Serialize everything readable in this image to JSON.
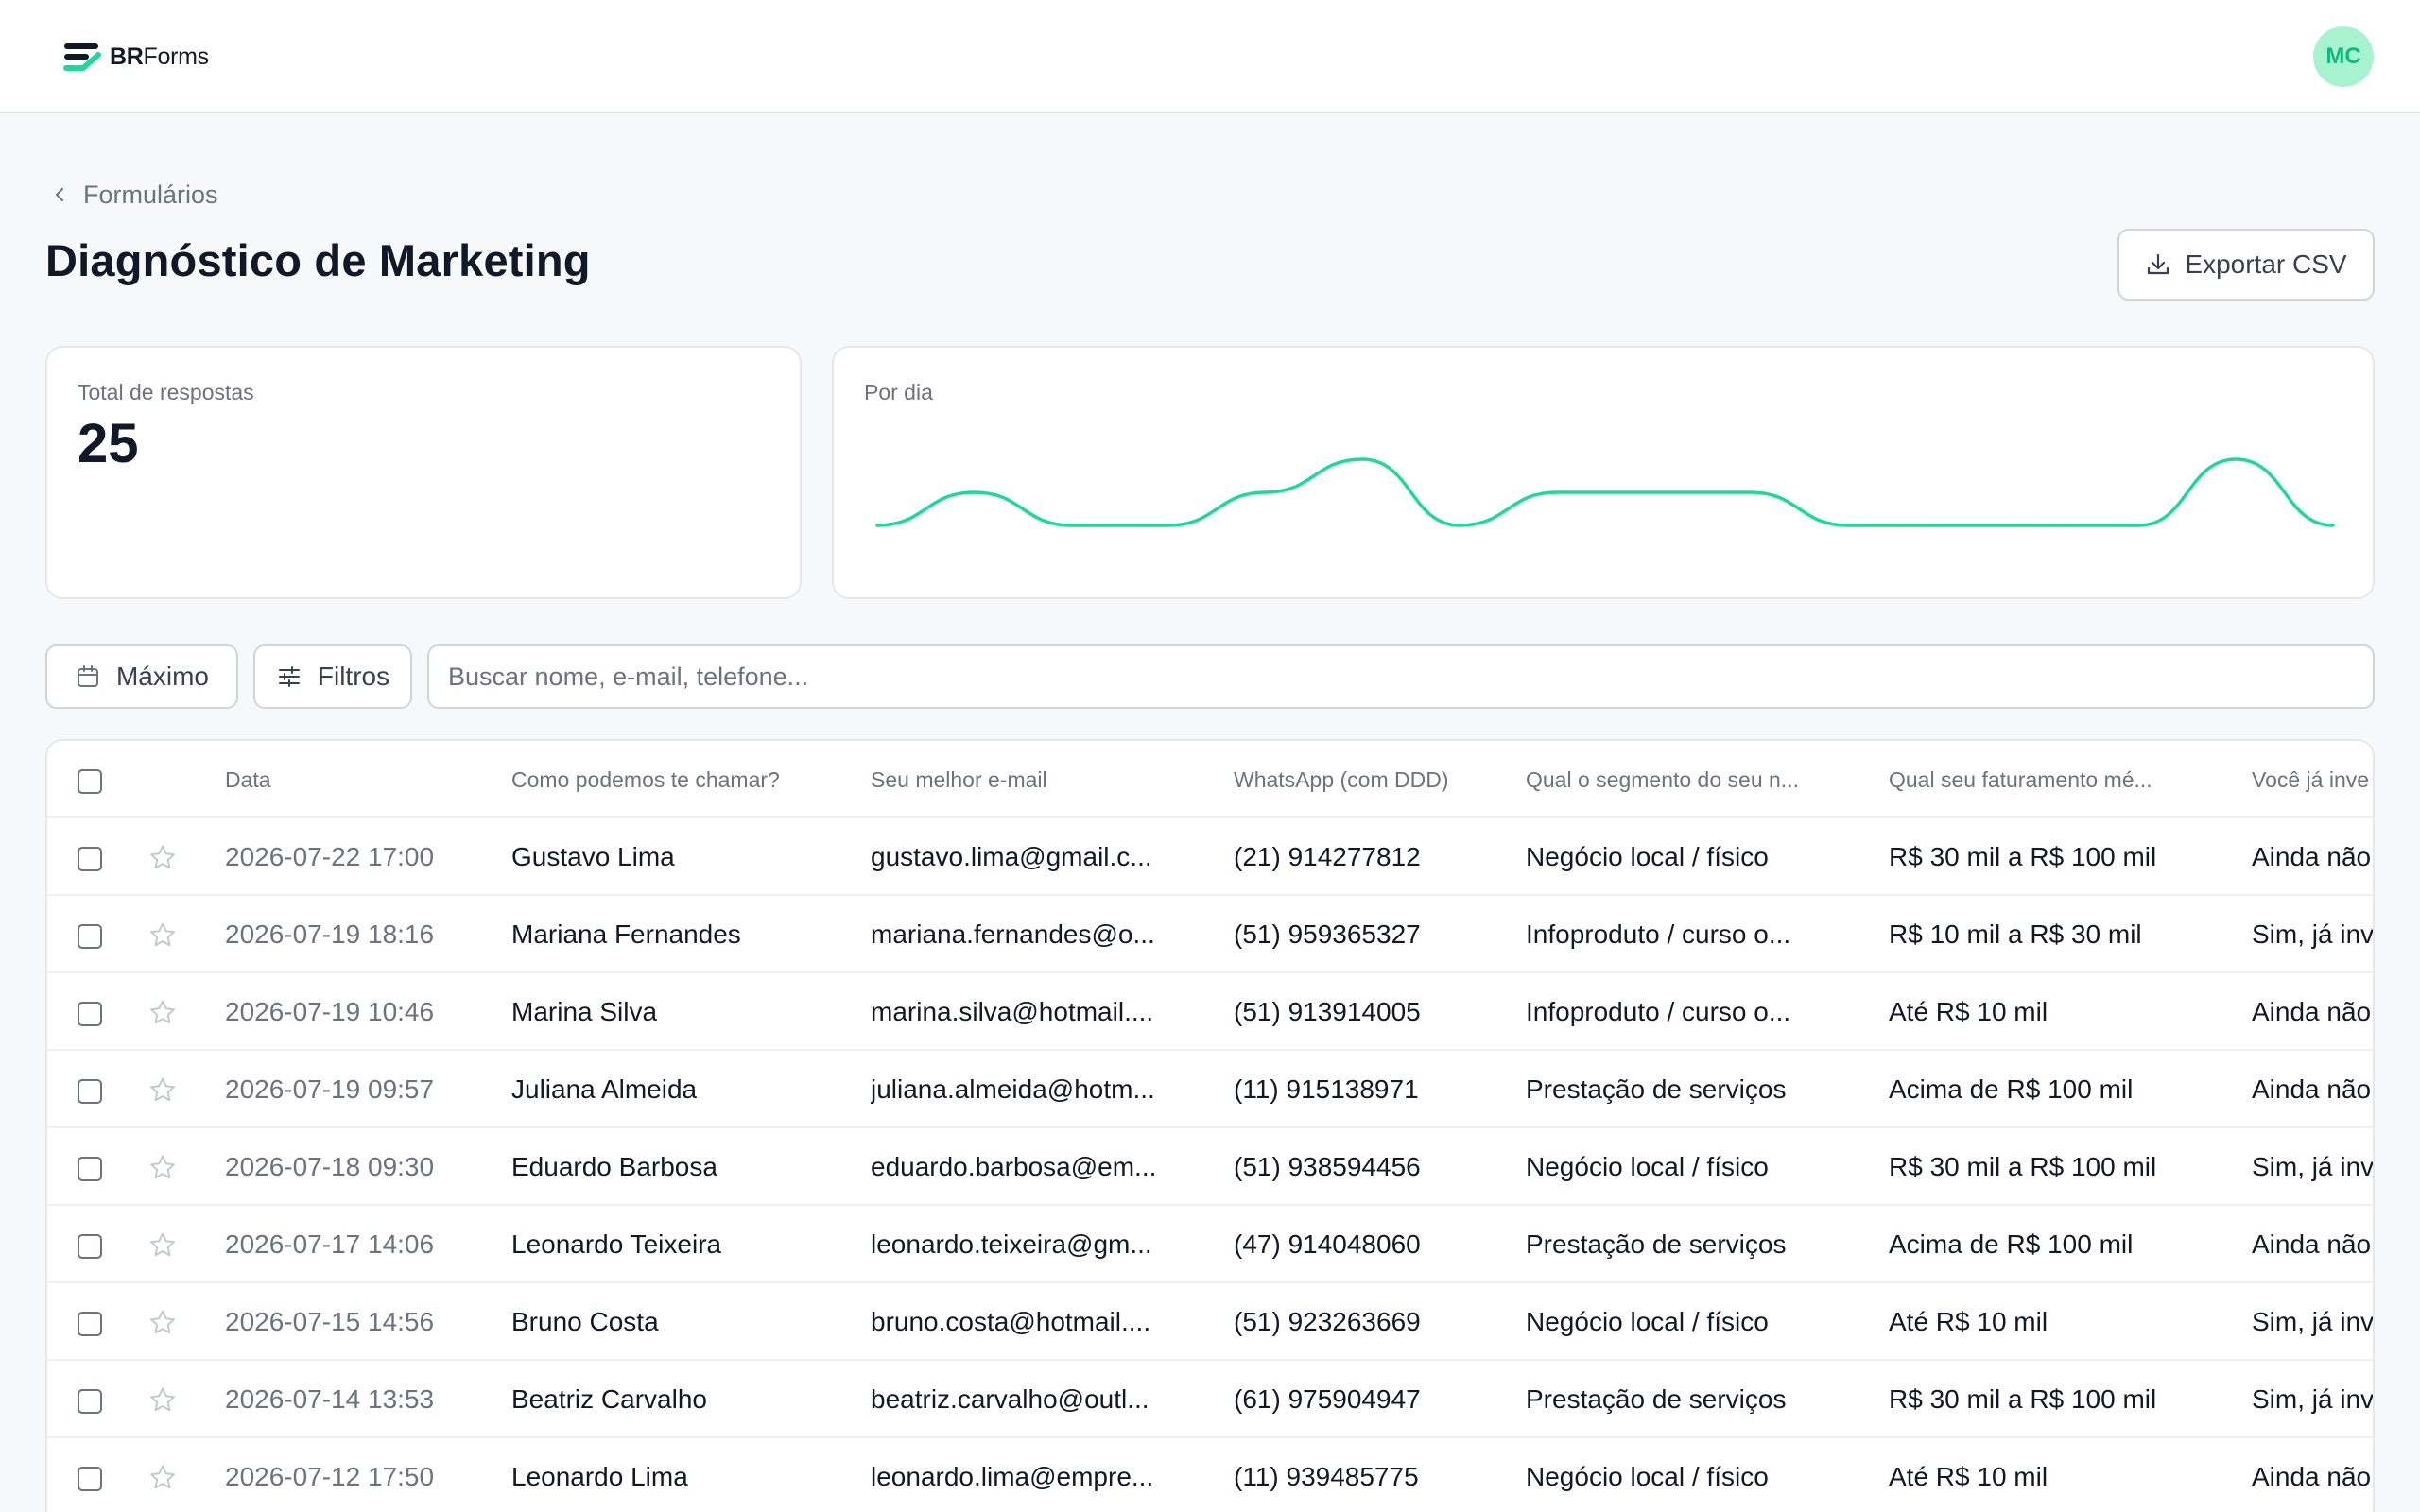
{
  "brand": {
    "name_bold": "BR",
    "name_rest": "Forms",
    "accent": "#1ed99b"
  },
  "user": {
    "initials": "MC"
  },
  "breadcrumb": {
    "label": "Formulários"
  },
  "page": {
    "title": "Diagnóstico de Marketing"
  },
  "actions": {
    "export_label": "Exportar CSV"
  },
  "stats": {
    "total_label": "Total de respostas",
    "total_value": "25",
    "chart_label": "Por dia"
  },
  "chart_data": {
    "type": "line",
    "title": "Por dia",
    "series": [
      {
        "values": [
          0,
          1,
          0,
          0,
          1,
          2,
          0,
          1,
          1,
          1,
          0,
          0,
          0,
          0,
          2,
          0
        ]
      }
    ],
    "grid": false,
    "color": "#1ed99b"
  },
  "filters": {
    "period_label": "Máximo",
    "filters_label": "Filtros"
  },
  "search": {
    "placeholder": "Buscar nome, e-mail, telefone..."
  },
  "table": {
    "columns": [
      "Data",
      "Como podemos te chamar?",
      "Seu melhor e-mail",
      "WhatsApp (com DDD)",
      "Qual o segmento do seu n...",
      "Qual seu faturamento mé...",
      "Você já inve"
    ],
    "rows": [
      {
        "date": "2026-07-22 17:00",
        "name": "Gustavo Lima",
        "email": "gustavo.lima@gmail.c...",
        "phone": "(21) 914277812",
        "segment": "Negócio local / físico",
        "revenue": "R$ 30 mil a R$ 100 mil",
        "invested": "Ainda não"
      },
      {
        "date": "2026-07-19 18:16",
        "name": "Mariana Fernandes",
        "email": "mariana.fernandes@o...",
        "phone": "(51) 959365327",
        "segment": "Infoproduto / curso o...",
        "revenue": "R$ 10 mil a R$ 30 mil",
        "invested": "Sim, já inv"
      },
      {
        "date": "2026-07-19 10:46",
        "name": "Marina Silva",
        "email": "marina.silva@hotmail....",
        "phone": "(51) 913914005",
        "segment": "Infoproduto / curso o...",
        "revenue": "Até R$ 10 mil",
        "invested": "Ainda não"
      },
      {
        "date": "2026-07-19 09:57",
        "name": "Juliana Almeida",
        "email": "juliana.almeida@hotm...",
        "phone": "(11) 915138971",
        "segment": "Prestação de serviços",
        "revenue": "Acima de R$ 100 mil",
        "invested": "Ainda não"
      },
      {
        "date": "2026-07-18 09:30",
        "name": "Eduardo Barbosa",
        "email": "eduardo.barbosa@em...",
        "phone": "(51) 938594456",
        "segment": "Negócio local / físico",
        "revenue": "R$ 30 mil a R$ 100 mil",
        "invested": "Sim, já inv"
      },
      {
        "date": "2026-07-17 14:06",
        "name": "Leonardo Teixeira",
        "email": "leonardo.teixeira@gm...",
        "phone": "(47) 914048060",
        "segment": "Prestação de serviços",
        "revenue": "Acima de R$ 100 mil",
        "invested": "Ainda não"
      },
      {
        "date": "2026-07-15 14:56",
        "name": "Bruno Costa",
        "email": "bruno.costa@hotmail....",
        "phone": "(51) 923263669",
        "segment": "Negócio local / físico",
        "revenue": "Até R$ 10 mil",
        "invested": "Sim, já inv"
      },
      {
        "date": "2026-07-14 13:53",
        "name": "Beatriz Carvalho",
        "email": "beatriz.carvalho@outl...",
        "phone": "(61) 975904947",
        "segment": "Prestação de serviços",
        "revenue": "R$ 30 mil a R$ 100 mil",
        "invested": "Sim, já inv"
      },
      {
        "date": "2026-07-12 17:50",
        "name": "Leonardo Lima",
        "email": "leonardo.lima@empre...",
        "phone": "(11) 939485775",
        "segment": "Negócio local / físico",
        "revenue": "Até R$ 10 mil",
        "invested": "Ainda não"
      }
    ]
  }
}
